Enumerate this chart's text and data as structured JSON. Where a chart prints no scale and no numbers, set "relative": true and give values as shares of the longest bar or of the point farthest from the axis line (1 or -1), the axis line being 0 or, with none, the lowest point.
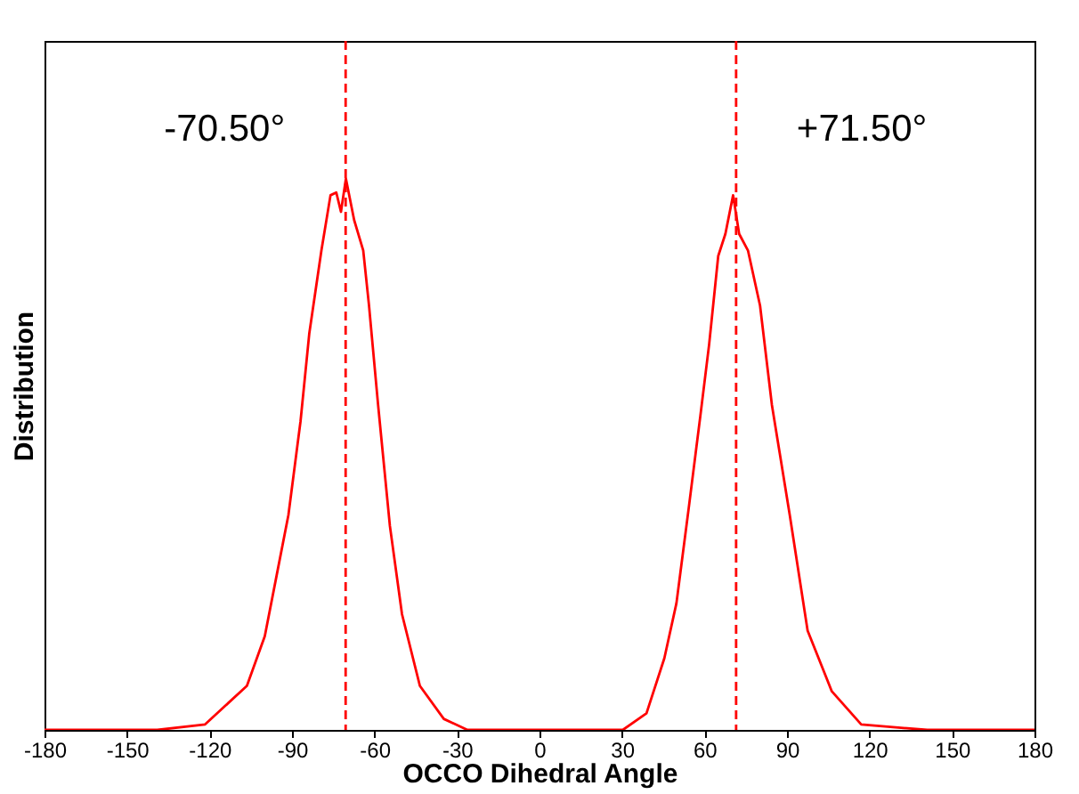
{
  "chart_data": {
    "type": "line",
    "relative": true,
    "xlabel": "OCCO Dihedral Angle",
    "ylabel": "Distribution",
    "xlim": [
      -180,
      180
    ],
    "xticks": [
      -180,
      -150,
      -120,
      -90,
      -60,
      -30,
      0,
      30,
      60,
      90,
      120,
      150,
      180
    ],
    "grid": false,
    "marker": "none",
    "line_style": "solid",
    "series": [
      {
        "color": "#ff0000",
        "x": [
          -180,
          -139,
          -121.6,
          -106.4,
          -99.9,
          -95.6,
          -91.3,
          -86.9,
          -83.7,
          -79.3,
          -76,
          -73.9,
          -72.2,
          -70.4,
          -67.4,
          -64.1,
          -62,
          -58.7,
          -54.4,
          -50,
          -43.5,
          -34.8,
          -26.2,
          -8.8,
          10.7,
          30.3,
          38.9,
          45.4,
          49.8,
          54.2,
          58.5,
          61.7,
          65,
          67.6,
          70.4,
          72.6,
          75.8,
          80.2,
          84.5,
          91,
          97.5,
          106.3,
          117,
          141,
          180
        ],
        "values": [
          0,
          0,
          0.01,
          0.08,
          0.17,
          0.28,
          0.39,
          0.56,
          0.72,
          0.87,
          0.97,
          0.975,
          0.94,
          1,
          0.925,
          0.87,
          0.77,
          0.59,
          0.37,
          0.21,
          0.08,
          0.02,
          0,
          0,
          0,
          0,
          0.03,
          0.13,
          0.23,
          0.4,
          0.57,
          0.7,
          0.86,
          0.9,
          0.97,
          0.9,
          0.87,
          0.77,
          0.59,
          0.39,
          0.18,
          0.07,
          0.01,
          0,
          0
        ]
      }
    ],
    "ref_lines": [
      {
        "axis": "x",
        "value": -70.5,
        "label": "-70.50°",
        "color": "#ff0000",
        "line_style": "dashed"
      },
      {
        "axis": "x",
        "value": 71.5,
        "label": "+71.50°",
        "color": "#ff0000",
        "line_style": "dashed"
      }
    ]
  }
}
